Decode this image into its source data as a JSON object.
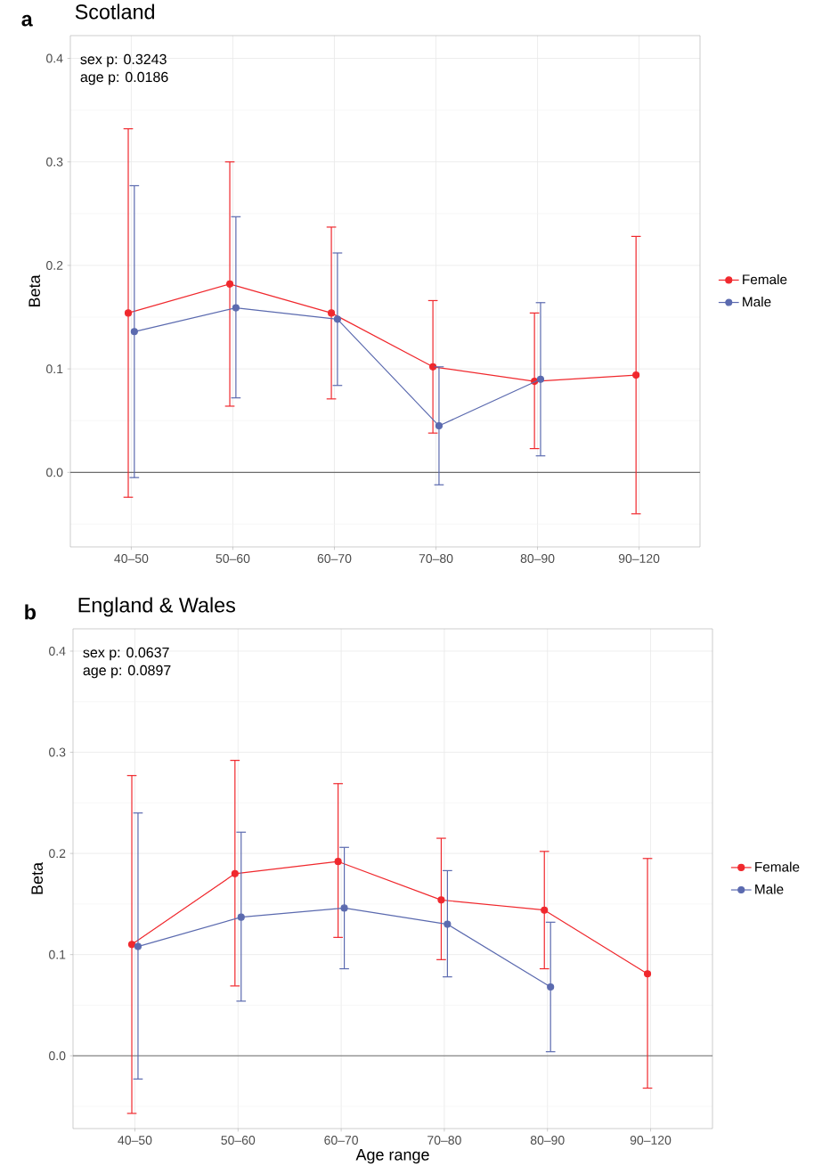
{
  "chart_data": [
    {
      "type": "line",
      "title": "Scotland",
      "ylabel": "Beta",
      "annotations": [
        "a",
        "sex p: 0.3243",
        "age p: 0.0186"
      ],
      "categories": [
        "40–50",
        "50–60",
        "60–70",
        "70–80",
        "80–90",
        "90–120"
      ],
      "series": [
        {
          "name": "Female",
          "color": "#f0282d",
          "values": [
            0.154,
            0.182,
            0.154,
            0.102,
            0.088,
            0.094
          ],
          "errors": [
            [
              -0.024,
              0.332
            ],
            [
              0.064,
              0.3
            ],
            [
              0.071,
              0.237
            ],
            [
              0.038,
              0.166
            ],
            [
              0.023,
              0.154
            ],
            [
              -0.04,
              0.228
            ]
          ]
        },
        {
          "name": "Male",
          "color": "#5b6aaf",
          "values": [
            0.136,
            0.159,
            0.148,
            0.045,
            0.09,
            null
          ],
          "errors": [
            [
              -0.005,
              0.277
            ],
            [
              0.072,
              0.247
            ],
            [
              0.084,
              0.212
            ],
            [
              -0.012,
              0.102
            ],
            [
              0.016,
              0.164
            ],
            null
          ]
        }
      ],
      "ylim": [
        -0.072,
        0.422
      ],
      "yticks": [
        {
          "value": 0,
          "label": "0.0"
        },
        0.1,
        0.2,
        0.3,
        0.4
      ],
      "ref_lines": [
        {
          "axis": "y",
          "value": 0,
          "color": "#6e6e6e"
        }
      ],
      "grid": true,
      "legend": "right",
      "marker": "circle"
    },
    {
      "type": "line",
      "title": "England & Wales",
      "ylabel": "Beta",
      "xlabel": "Age range",
      "annotations": [
        "b",
        "sex p: 0.0637",
        "age p: 0.0897"
      ],
      "categories": [
        "40–50",
        "50–60",
        "60–70",
        "70–80",
        "80–90",
        "90–120"
      ],
      "series": [
        {
          "name": "Female",
          "color": "#f0282d",
          "values": [
            0.11,
            0.18,
            0.192,
            0.154,
            0.144,
            0.081
          ],
          "errors": [
            [
              -0.057,
              0.277
            ],
            [
              0.069,
              0.292
            ],
            [
              0.117,
              0.269
            ],
            [
              0.095,
              0.215
            ],
            [
              0.086,
              0.202
            ],
            [
              -0.032,
              0.195
            ]
          ]
        },
        {
          "name": "Male",
          "color": "#5b6aaf",
          "values": [
            0.108,
            0.137,
            0.146,
            0.13,
            0.068,
            null
          ],
          "errors": [
            [
              -0.023,
              0.24
            ],
            [
              0.054,
              0.221
            ],
            [
              0.086,
              0.206
            ],
            [
              0.078,
              0.183
            ],
            [
              0.004,
              0.132
            ],
            null
          ]
        }
      ],
      "ylim": [
        -0.072,
        0.422
      ],
      "yticks": [
        {
          "value": 0,
          "label": "0.0"
        },
        0.1,
        0.2,
        0.3,
        0.4
      ],
      "ref_lines": [
        {
          "axis": "y",
          "value": 0,
          "color": "#6e6e6e"
        }
      ],
      "grid": true,
      "legend": "right",
      "marker": "circle"
    }
  ]
}
